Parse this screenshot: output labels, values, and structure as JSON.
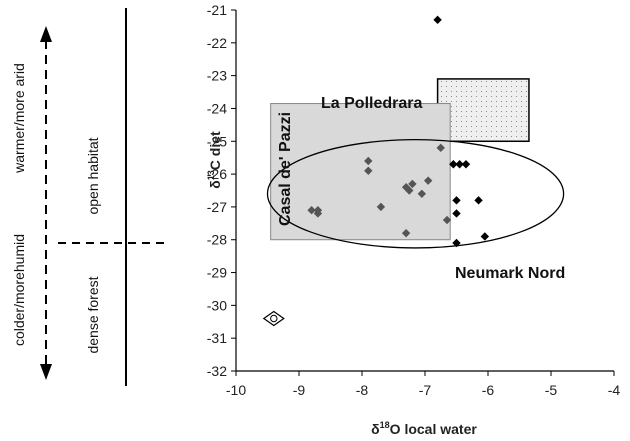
{
  "chart_data": {
    "type": "scatter",
    "xlabel": "δ18O local water",
    "xlabel_main": "δ",
    "xlabel_sup": "18",
    "xlabel_rest": "O local water",
    "ylabel": "δ13C diet",
    "ylabel_main": "δ",
    "ylabel_sup": "13",
    "ylabel_rest": "C diet",
    "xlim": [
      -10,
      -4
    ],
    "ylim": [
      -32,
      -21
    ],
    "x_ticks": [
      "-10",
      "-9",
      "-8",
      "-7",
      "-6",
      "-5",
      "-4"
    ],
    "y_ticks": [
      "-21",
      "-22",
      "-23",
      "-24",
      "-25",
      "-26",
      "-27",
      "-28",
      "-29",
      "-30",
      "-31",
      "-32"
    ],
    "grid": false,
    "series": [
      {
        "color": "#555555",
        "points": [
          {
            "x": -8.8,
            "y": -27.1
          },
          {
            "x": -8.7,
            "y": -27.2
          },
          {
            "x": -8.7,
            "y": -27.1
          },
          {
            "x": -7.9,
            "y": -25.6
          },
          {
            "x": -7.9,
            "y": -25.9
          },
          {
            "x": -7.7,
            "y": -27.0
          },
          {
            "x": -7.3,
            "y": -26.4
          },
          {
            "x": -7.25,
            "y": -26.5
          },
          {
            "x": -7.2,
            "y": -26.3
          },
          {
            "x": -7.05,
            "y": -26.6
          },
          {
            "x": -6.95,
            "y": -26.2
          },
          {
            "x": -7.3,
            "y": -27.8
          },
          {
            "x": -6.75,
            "y": -25.2
          },
          {
            "x": -6.65,
            "y": -27.4
          }
        ]
      },
      {
        "color": "#000000",
        "points": [
          {
            "x": -6.8,
            "y": -21.3
          },
          {
            "x": -6.55,
            "y": -25.7
          },
          {
            "x": -6.45,
            "y": -25.7
          },
          {
            "x": -6.35,
            "y": -25.7
          },
          {
            "x": -6.5,
            "y": -26.8
          },
          {
            "x": -6.5,
            "y": -27.2
          },
          {
            "x": -6.5,
            "y": -28.1
          },
          {
            "x": -6.15,
            "y": -26.8
          },
          {
            "x": -6.05,
            "y": -27.9
          }
        ]
      }
    ],
    "outlier": {
      "x": -9.4,
      "y": -30.4
    },
    "regions": [
      {
        "label": "La Polledrara",
        "x0": -6.8,
        "x1": -5.35,
        "y0": -25.0,
        "y1": -23.1,
        "fill": "#efefef",
        "pattern": "dots"
      },
      {
        "label": "Casal de' Pazzi",
        "x0": -9.45,
        "x1": -6.6,
        "y0": -28.0,
        "y1": -23.85,
        "fill": "#d9d9d9",
        "pattern": "none"
      }
    ],
    "ellipse": {
      "label": "Neumark Nord",
      "cx": -7.15,
      "cy": -26.6,
      "rx": 2.35,
      "ry": 1.65
    },
    "side_annotations": {
      "top_left": "warmer/more arid",
      "bottom_left": "colder/morehumid",
      "top_right": "open habitat",
      "bottom_right": "dense forest"
    }
  }
}
